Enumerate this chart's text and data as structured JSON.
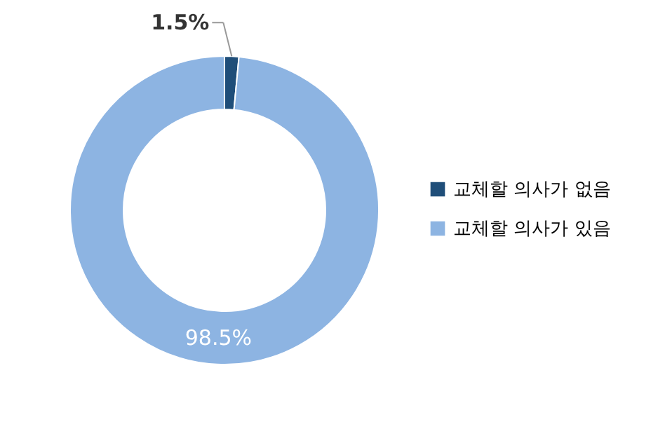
{
  "chart_data": {
    "type": "donut",
    "categories": [
      "교체할 의사가 없음",
      "교체할 의사가 있음"
    ],
    "values": [
      1.5,
      98.5
    ],
    "colors": [
      "#1f4e79",
      "#8db4e2"
    ],
    "value_labels": [
      "1.5%",
      "98.5%"
    ],
    "legend": "right"
  }
}
